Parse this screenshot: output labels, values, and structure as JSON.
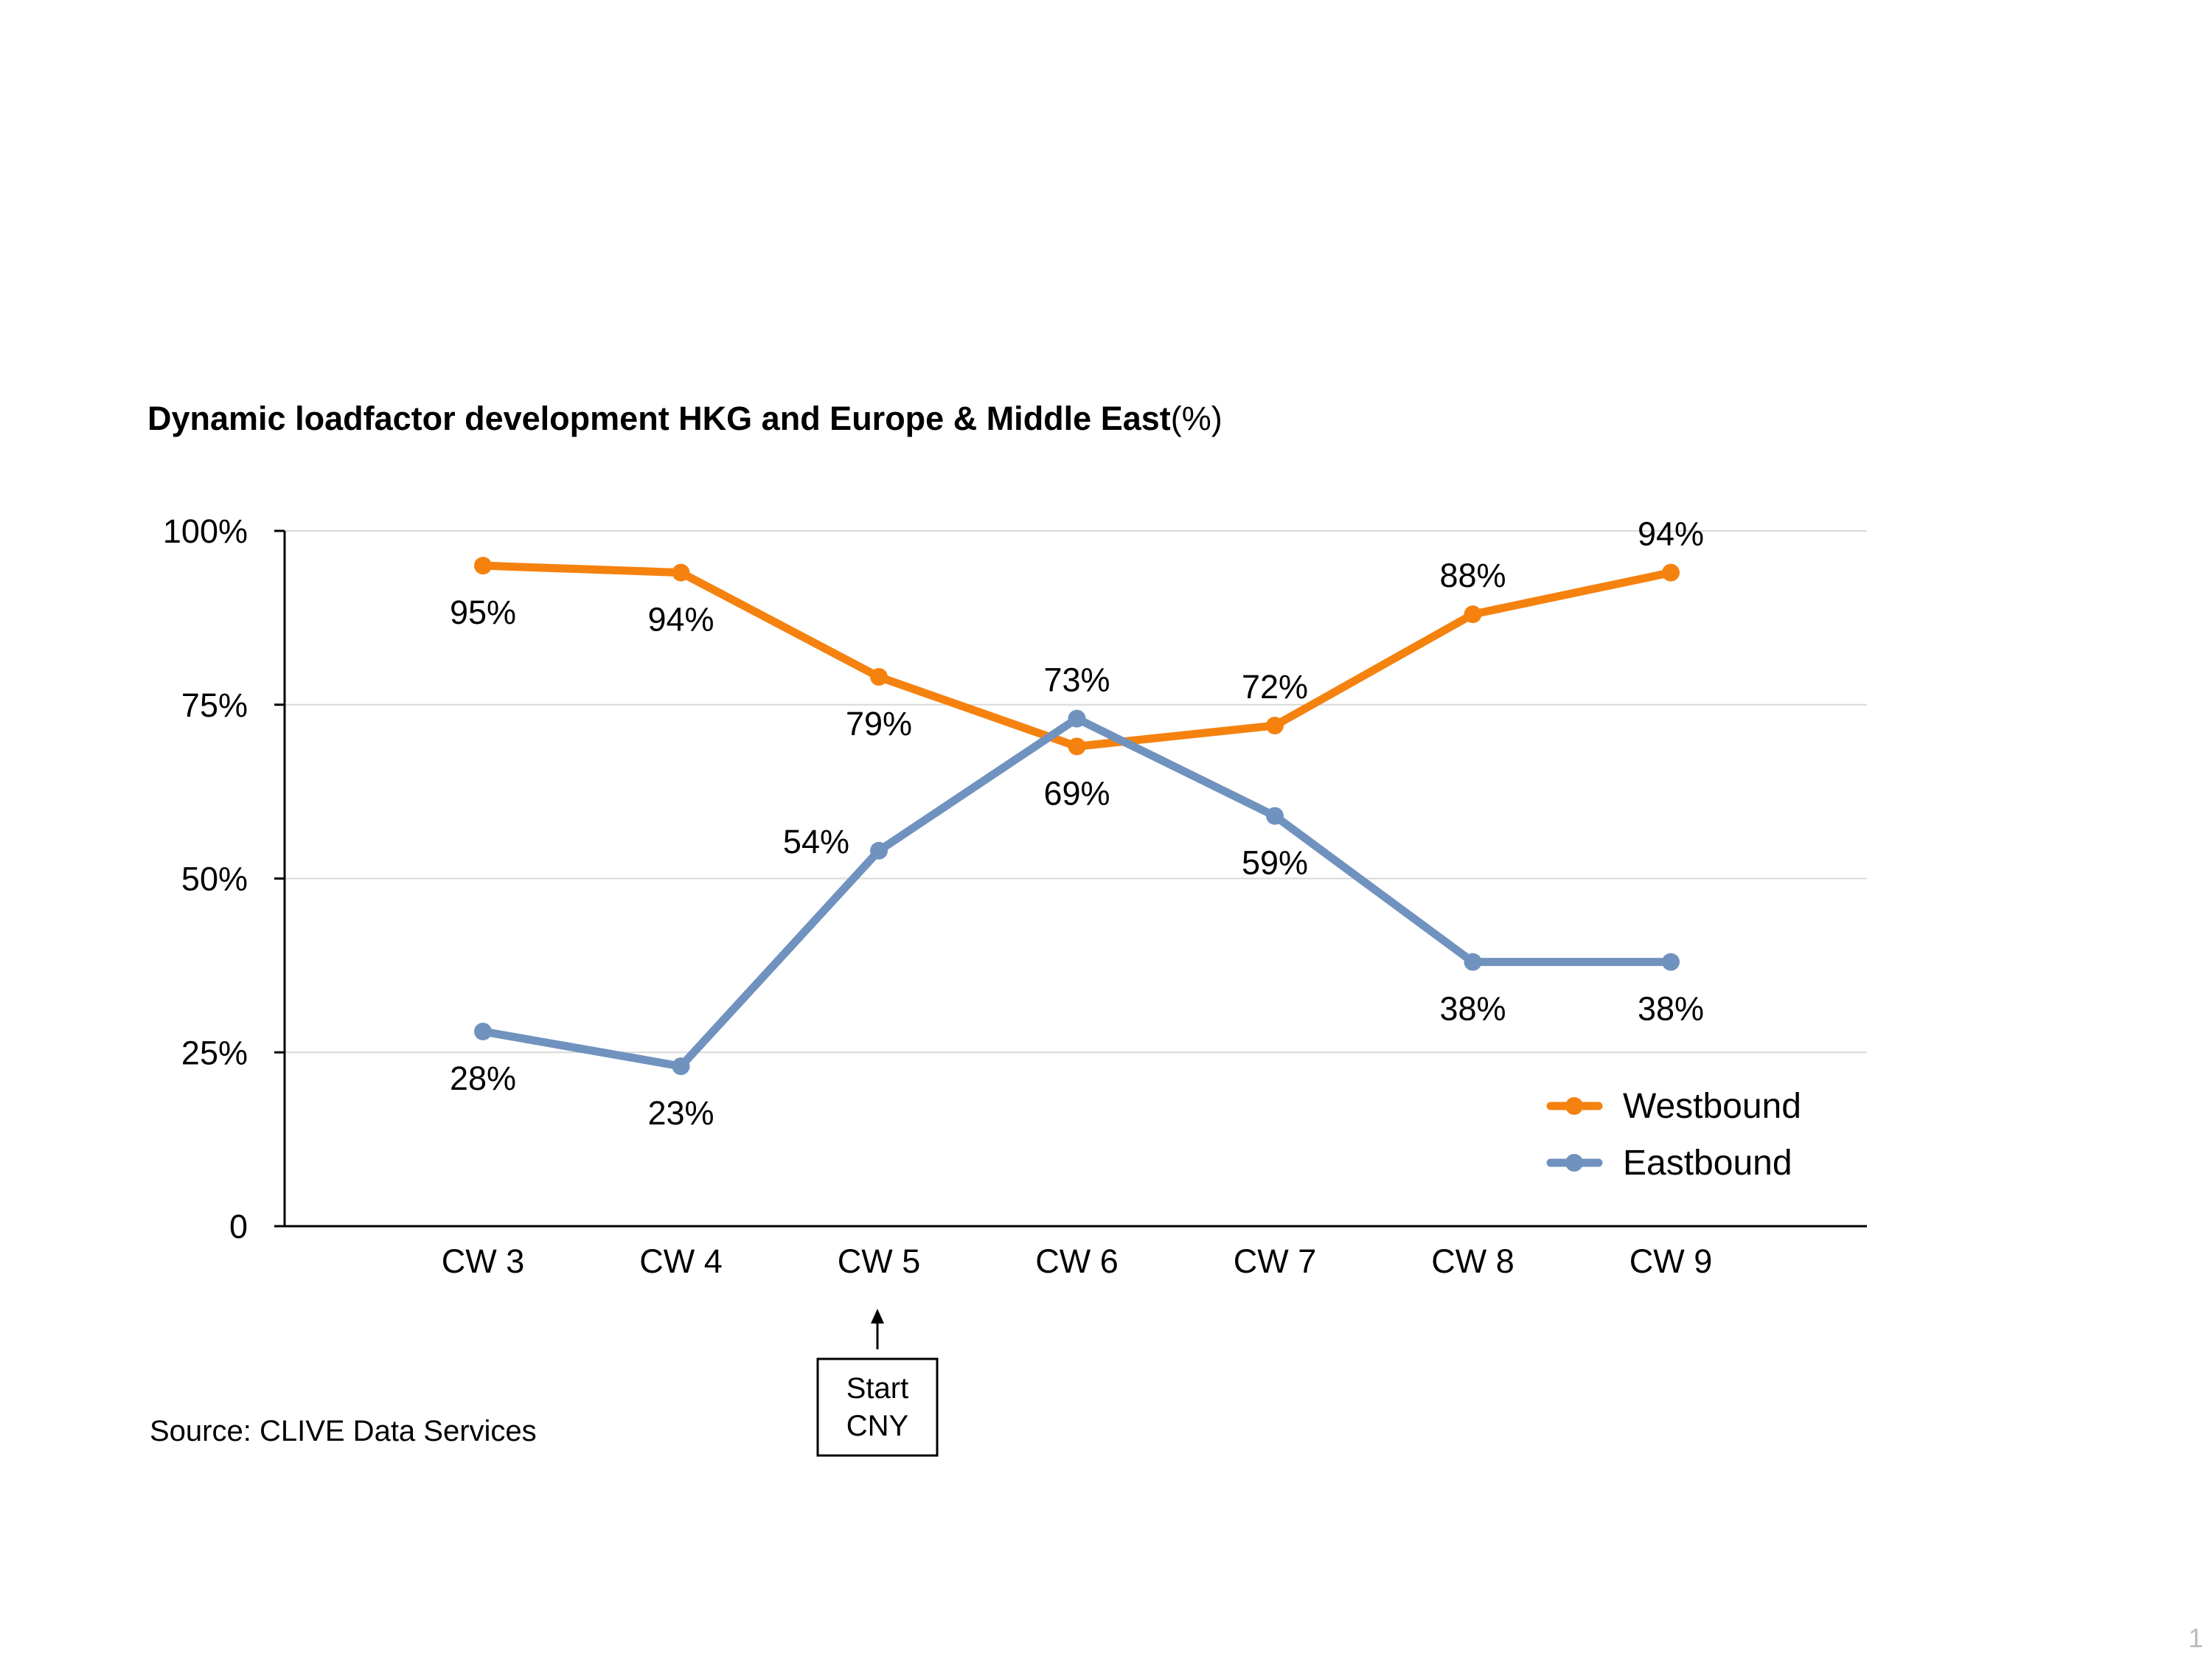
{
  "title_bold": "Dynamic loadfactor development HKG and Europe & Middle East",
  "title_suffix": "(%)",
  "source": "Source: CLIVE Data Services",
  "page_number": "1",
  "annotation": {
    "line1": "Start",
    "line2": "CNY",
    "category": "CW 5"
  },
  "colors": {
    "westbound": "#F5820F",
    "eastbound": "#7092BE",
    "grid": "#D9D9D9",
    "axis": "#000000"
  },
  "chart_data": {
    "type": "line",
    "categories": [
      "CW 3",
      "CW 4",
      "CW 5",
      "CW 6",
      "CW 7",
      "CW 8",
      "CW 9"
    ],
    "series": [
      {
        "name": "Westbound",
        "values": [
          95,
          94,
          79,
          69,
          72,
          88,
          94
        ],
        "labels": [
          "95%",
          "94%",
          "79%",
          "69%",
          "72%",
          "88%",
          "94%"
        ],
        "label_pos": [
          "below",
          "below",
          "below",
          "below",
          "above",
          "above",
          "above"
        ]
      },
      {
        "name": "Eastbound",
        "values": [
          28,
          23,
          54,
          73,
          59,
          38,
          38
        ],
        "labels": [
          "28%",
          "23%",
          "54%",
          "73%",
          "59%",
          "38%",
          "38%"
        ],
        "label_pos": [
          "below",
          "below",
          "left",
          "above",
          "below",
          "below",
          "below"
        ]
      }
    ],
    "ylim": [
      0,
      100
    ],
    "yticks": [
      0,
      25,
      50,
      75,
      100
    ],
    "ytick_labels": [
      "0",
      "25%",
      "50%",
      "75%",
      "100%"
    ],
    "grid": true,
    "legend_position": "bottom-right"
  }
}
